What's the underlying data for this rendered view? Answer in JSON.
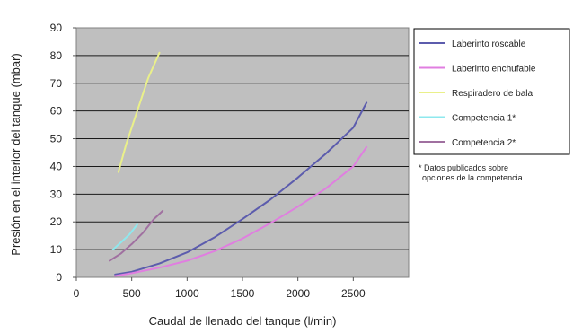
{
  "chart_data": {
    "type": "line",
    "title": "",
    "xlabel": "Caudal de llenado del tanque (l/min)",
    "ylabel": "Presión en el interior del tanque (mbar)",
    "xlim": [
      0,
      3000
    ],
    "ylim": [
      0,
      90
    ],
    "x_ticks": [
      "0",
      "500",
      "1000",
      "1500",
      "2000",
      "2500"
    ],
    "y_ticks": [
      "0",
      "10",
      "20",
      "30",
      "40",
      "50",
      "60",
      "70",
      "80",
      "90"
    ],
    "grid": "horizontal",
    "plot_background": "#bfbfbf",
    "legend_position": "right",
    "series": [
      {
        "name": "Laberinto roscable",
        "color": "#5c5cad",
        "points": [
          [
            350,
            1
          ],
          [
            500,
            2
          ],
          [
            750,
            5
          ],
          [
            1000,
            9
          ],
          [
            1250,
            14.5
          ],
          [
            1500,
            21
          ],
          [
            1750,
            28
          ],
          [
            2000,
            36
          ],
          [
            2250,
            44.5
          ],
          [
            2500,
            54
          ],
          [
            2620,
            63
          ]
        ]
      },
      {
        "name": "Laberinto enchufable",
        "color": "#e07ee0",
        "points": [
          [
            350,
            0.5
          ],
          [
            500,
            1.5
          ],
          [
            750,
            3.5
          ],
          [
            1000,
            6
          ],
          [
            1250,
            9.5
          ],
          [
            1500,
            14
          ],
          [
            1750,
            19.5
          ],
          [
            2000,
            25.5
          ],
          [
            2250,
            32
          ],
          [
            2500,
            40
          ],
          [
            2620,
            47
          ]
        ]
      },
      {
        "name": "Respiradero de bala",
        "color": "#eaf08a",
        "points": [
          [
            380,
            38
          ],
          [
            450,
            48
          ],
          [
            550,
            60
          ],
          [
            650,
            72
          ],
          [
            750,
            81
          ]
        ]
      },
      {
        "name": "Competencia 1*",
        "color": "#8ee8ee",
        "points": [
          [
            330,
            10
          ],
          [
            400,
            12.5
          ],
          [
            480,
            15.5
          ],
          [
            550,
            19
          ]
        ]
      },
      {
        "name": "Competencia 2*",
        "color": "#a070a0",
        "points": [
          [
            300,
            6
          ],
          [
            400,
            8.5
          ],
          [
            500,
            12
          ],
          [
            600,
            16
          ],
          [
            700,
            21
          ],
          [
            780,
            24
          ]
        ]
      }
    ],
    "legend_note": "* Datos publicados sobre opciones de la competencia"
  }
}
